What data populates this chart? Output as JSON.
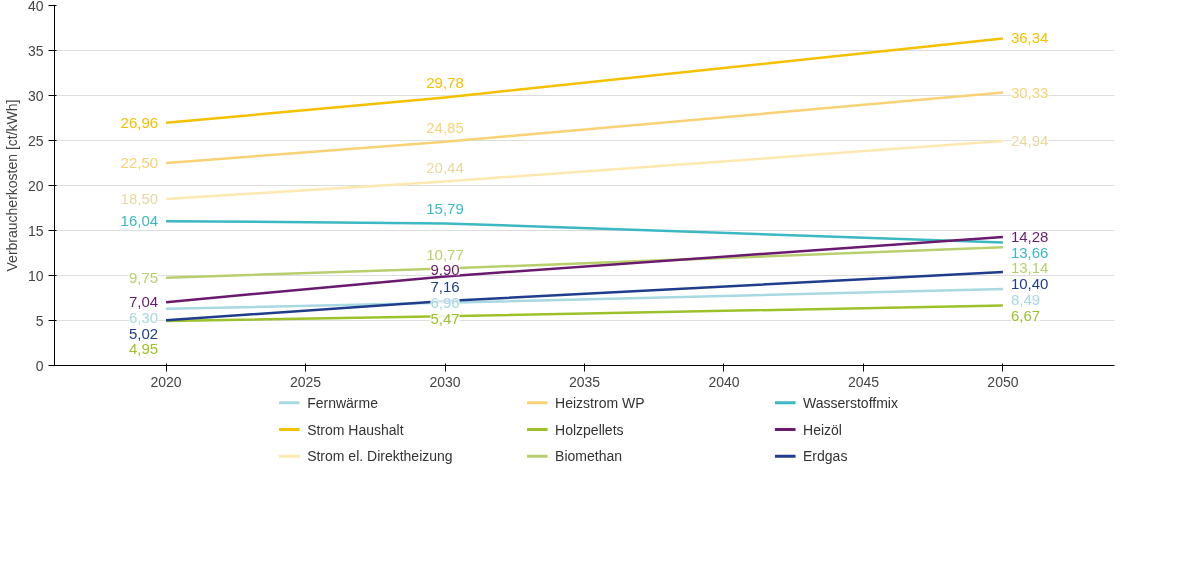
{
  "chart_data": {
    "type": "line",
    "ylabel": "Verbraucherkosten [ct/kWh]",
    "xlim": [
      2016,
      2054
    ],
    "xticks": [
      2020,
      2025,
      2030,
      2035,
      2040,
      2045,
      2050
    ],
    "ylim": [
      0,
      40
    ],
    "yticks": [
      0,
      5,
      10,
      15,
      20,
      25,
      30,
      35,
      40
    ],
    "grid": "y",
    "legend": "bottom",
    "marker": "none",
    "line_style": "solid",
    "x": [
      2020,
      2030,
      2050
    ],
    "series": [
      {
        "name": "Fernwärme",
        "color": "#a8d8e0",
        "values": [
          6.3,
          6.96,
          8.49
        ],
        "value_labels": [
          "6,30",
          "6,96",
          "8,49"
        ]
      },
      {
        "name": "Strom Haushalt",
        "color": "#f5c000",
        "values": [
          26.96,
          29.78,
          36.34
        ],
        "value_labels": [
          "26,96",
          "29,78",
          "36,34"
        ]
      },
      {
        "name": "Strom el. Direktheizung",
        "color": "#fde9b0",
        "values": [
          18.5,
          20.44,
          24.94
        ],
        "value_labels": [
          "18,50",
          "20,44",
          "24,94"
        ]
      },
      {
        "name": "Heizstrom WP",
        "color": "#f8d275",
        "values": [
          22.5,
          24.85,
          30.33
        ],
        "value_labels": [
          "22,50",
          "24,85",
          "30,33"
        ]
      },
      {
        "name": "Holzpellets",
        "color": "#9dc12b",
        "values": [
          4.95,
          5.47,
          6.67
        ],
        "value_labels": [
          "4,95",
          "5,47",
          "6,67"
        ]
      },
      {
        "name": "Biomethan",
        "color": "#b9cf6e",
        "values": [
          9.75,
          10.77,
          13.14
        ],
        "value_labels": [
          "9,75",
          "10,77",
          "13,14"
        ]
      },
      {
        "name": "Wasserstoffmix",
        "color": "#3bb8c3",
        "values": [
          16.04,
          15.79,
          13.66
        ],
        "value_labels": [
          "16,04",
          "15,79",
          "13,66"
        ]
      },
      {
        "name": "Heizöl",
        "color": "#6a1a6e",
        "values": [
          7.04,
          9.9,
          14.28
        ],
        "value_labels": [
          "7,04",
          "9,90",
          "14,28"
        ]
      },
      {
        "name": "Erdgas",
        "color": "#1f3d8c",
        "values": [
          5.02,
          7.16,
          10.4
        ],
        "value_labels": [
          "5,02",
          "7,16",
          "10,40"
        ]
      }
    ]
  }
}
